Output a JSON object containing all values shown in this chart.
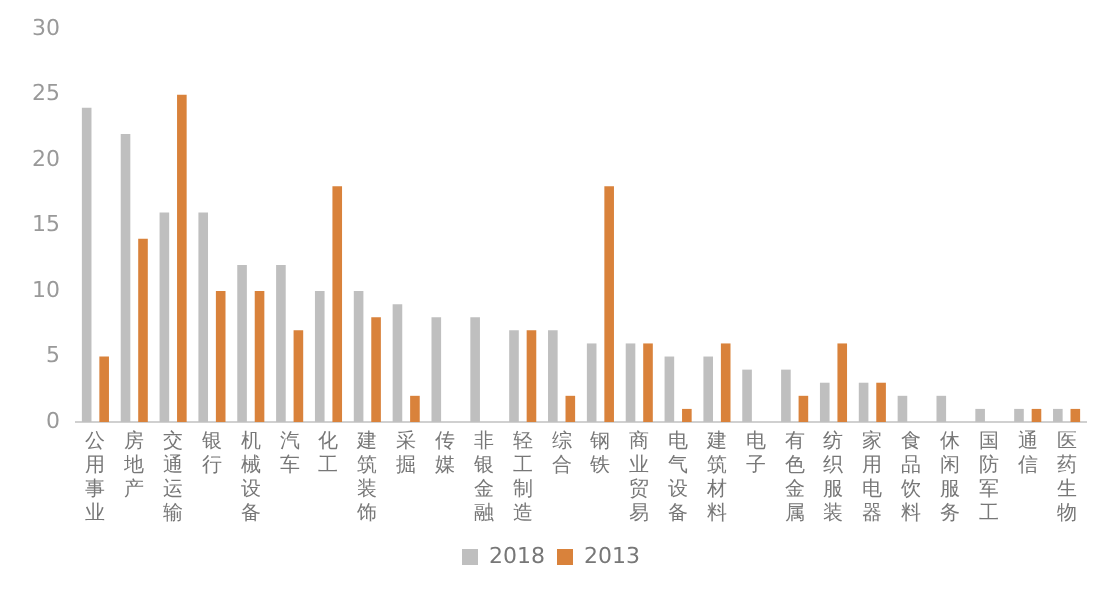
{
  "chart_data": {
    "type": "bar",
    "categories": [
      "公用事业",
      "房地产",
      "交通运输",
      "银行",
      "机械设备",
      "汽车",
      "化工",
      "建筑装饰",
      "采掘",
      "传媒",
      "非银金融",
      "轻工制造",
      "综合",
      "钢铁",
      "商业贸易",
      "电气设备",
      "建筑材料",
      "电子",
      "有色金属",
      "纺织服装",
      "家用电器",
      "食品饮料",
      "休闲服务",
      "国防军工",
      "通信",
      "医药生物"
    ],
    "series": [
      {
        "name": "2018",
        "color": "#bfbfbf",
        "values": [
          24,
          22,
          16,
          16,
          12,
          12,
          10,
          10,
          9,
          8,
          8,
          7,
          7,
          6,
          6,
          5,
          5,
          4,
          4,
          3,
          3,
          2,
          2,
          1,
          1,
          1
        ]
      },
      {
        "name": "2013",
        "color": "#d9823b",
        "values": [
          5,
          14,
          25,
          10,
          10,
          7,
          18,
          8,
          2,
          0,
          0,
          7,
          2,
          18,
          6,
          1,
          6,
          0,
          2,
          6,
          3,
          0,
          0,
          0,
          1,
          1
        ]
      }
    ],
    "ylim": [
      0,
      30
    ],
    "yticks": [
      0,
      5,
      10,
      15,
      20,
      25,
      30
    ],
    "grid": false,
    "legend": "bottom"
  }
}
